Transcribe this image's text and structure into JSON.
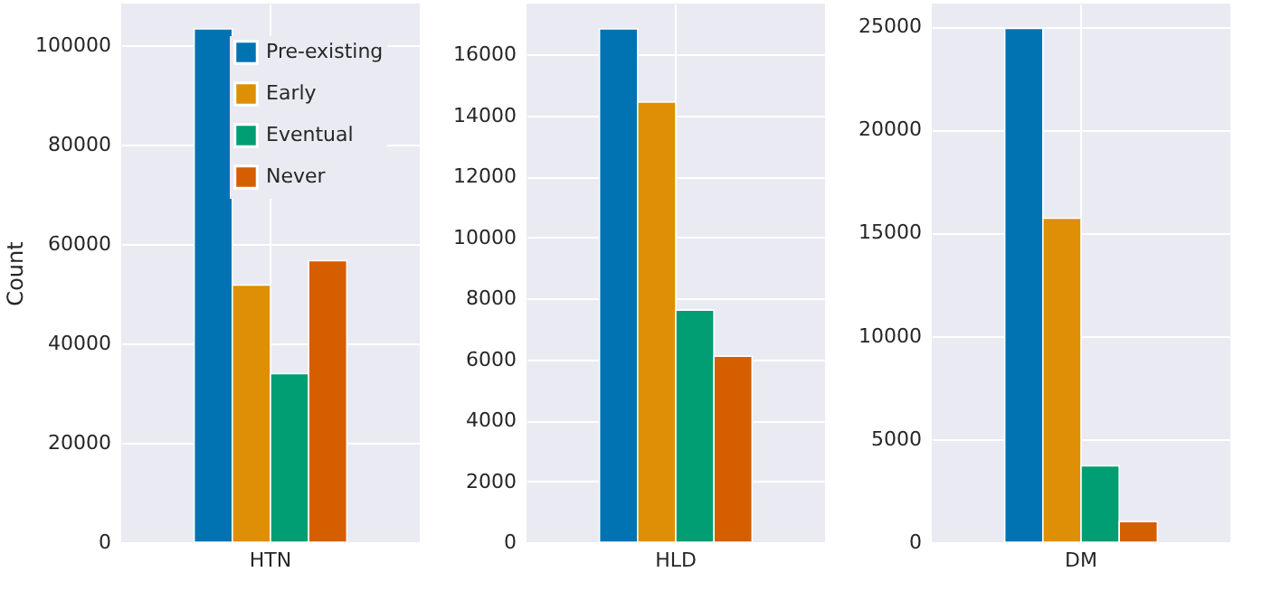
{
  "chart_data": [
    {
      "type": "bar",
      "categories": [
        "HTN"
      ],
      "ylabel": "Count",
      "ylim": [
        0,
        108300
      ],
      "yticks": [
        0,
        20000,
        40000,
        60000,
        80000,
        100000
      ],
      "grid": true,
      "legend": "top right",
      "series": [
        {
          "name": "Pre-existing",
          "color": "#0173b2",
          "values": [
            103200
          ]
        },
        {
          "name": "Early",
          "color": "#de8f05",
          "values": [
            51700
          ]
        },
        {
          "name": "Eventual",
          "color": "#029e73",
          "values": [
            33900
          ]
        },
        {
          "name": "Never",
          "color": "#d55e00",
          "values": [
            56600
          ]
        }
      ]
    },
    {
      "type": "bar",
      "categories": [
        "HLD"
      ],
      "ylim": [
        0,
        17660
      ],
      "yticks": [
        0,
        2000,
        4000,
        6000,
        8000,
        10000,
        12000,
        14000,
        16000
      ],
      "grid": true,
      "series": [
        {
          "color": "#0173b2",
          "values": [
            16830
          ]
        },
        {
          "color": "#de8f05",
          "values": [
            14430
          ]
        },
        {
          "color": "#029e73",
          "values": [
            7610
          ]
        },
        {
          "color": "#d55e00",
          "values": [
            6100
          ]
        }
      ]
    },
    {
      "type": "bar",
      "categories": [
        "DM"
      ],
      "ylim": [
        0,
        26100
      ],
      "yticks": [
        0,
        5000,
        10000,
        15000,
        20000,
        25000
      ],
      "grid": true,
      "series": [
        {
          "color": "#0173b2",
          "values": [
            24900
          ]
        },
        {
          "color": "#de8f05",
          "values": [
            15700
          ]
        },
        {
          "color": "#029e73",
          "values": [
            3700
          ]
        },
        {
          "color": "#d55e00",
          "values": [
            1000
          ]
        }
      ]
    }
  ]
}
